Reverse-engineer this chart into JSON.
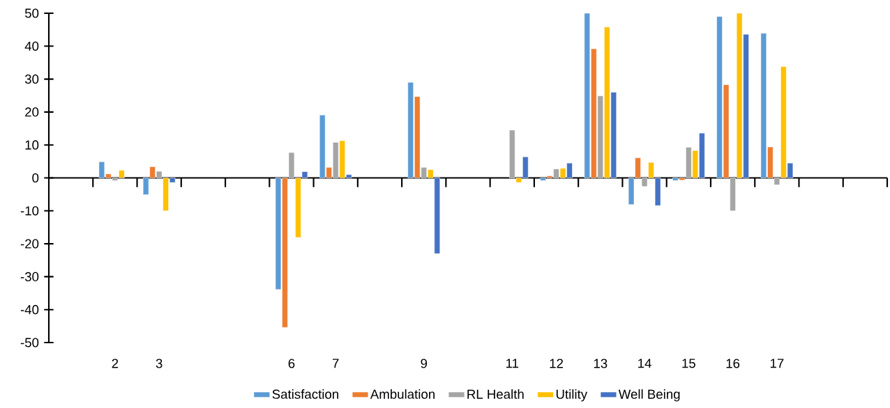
{
  "chart_data": {
    "type": "bar",
    "categories": [
      null,
      "2",
      "3",
      null,
      null,
      "6",
      "7",
      null,
      "9",
      null,
      "11",
      "12",
      "13",
      "14",
      "15",
      "16",
      "17",
      null,
      null
    ],
    "series": [
      {
        "name": "Satisfaction",
        "color": "#5b9bd5",
        "values": [
          null,
          4.9,
          -5.1,
          null,
          null,
          -33.9,
          19.1,
          null,
          29.0,
          null,
          null,
          -0.8,
          50.0,
          -8.1,
          -0.8,
          49.0,
          43.9,
          null,
          null
        ]
      },
      {
        "name": "Ambulation",
        "color": "#ed7d31",
        "values": [
          null,
          1.2,
          3.4,
          null,
          null,
          -45.4,
          3.2,
          null,
          24.7,
          null,
          null,
          0.6,
          39.2,
          6.1,
          -0.7,
          28.3,
          9.4,
          null,
          null
        ]
      },
      {
        "name": "RL Health",
        "color": "#a5a5a5",
        "values": [
          null,
          -0.8,
          2.0,
          null,
          null,
          7.7,
          10.8,
          null,
          3.2,
          null,
          14.5,
          2.7,
          24.9,
          -2.6,
          9.3,
          -10.0,
          -2.1,
          null,
          null
        ]
      },
      {
        "name": "Utility",
        "color": "#ffc000",
        "values": [
          null,
          2.3,
          -10.0,
          null,
          null,
          -18.1,
          11.3,
          null,
          2.5,
          null,
          -1.4,
          2.9,
          45.8,
          4.7,
          8.3,
          50.0,
          33.8,
          null,
          null
        ]
      },
      {
        "name": "Well Being",
        "color": "#4472c4",
        "values": [
          null,
          null,
          -1.4,
          null,
          null,
          1.9,
          1.0,
          null,
          -23.0,
          null,
          6.4,
          4.5,
          26.0,
          -8.4,
          13.6,
          43.6,
          4.5,
          null,
          null
        ]
      }
    ],
    "ylim": [
      -50,
      50
    ],
    "yticks": [
      -50,
      -40,
      -30,
      -20,
      -10,
      0,
      10,
      20,
      30,
      40,
      50
    ],
    "legend": "bottom"
  }
}
